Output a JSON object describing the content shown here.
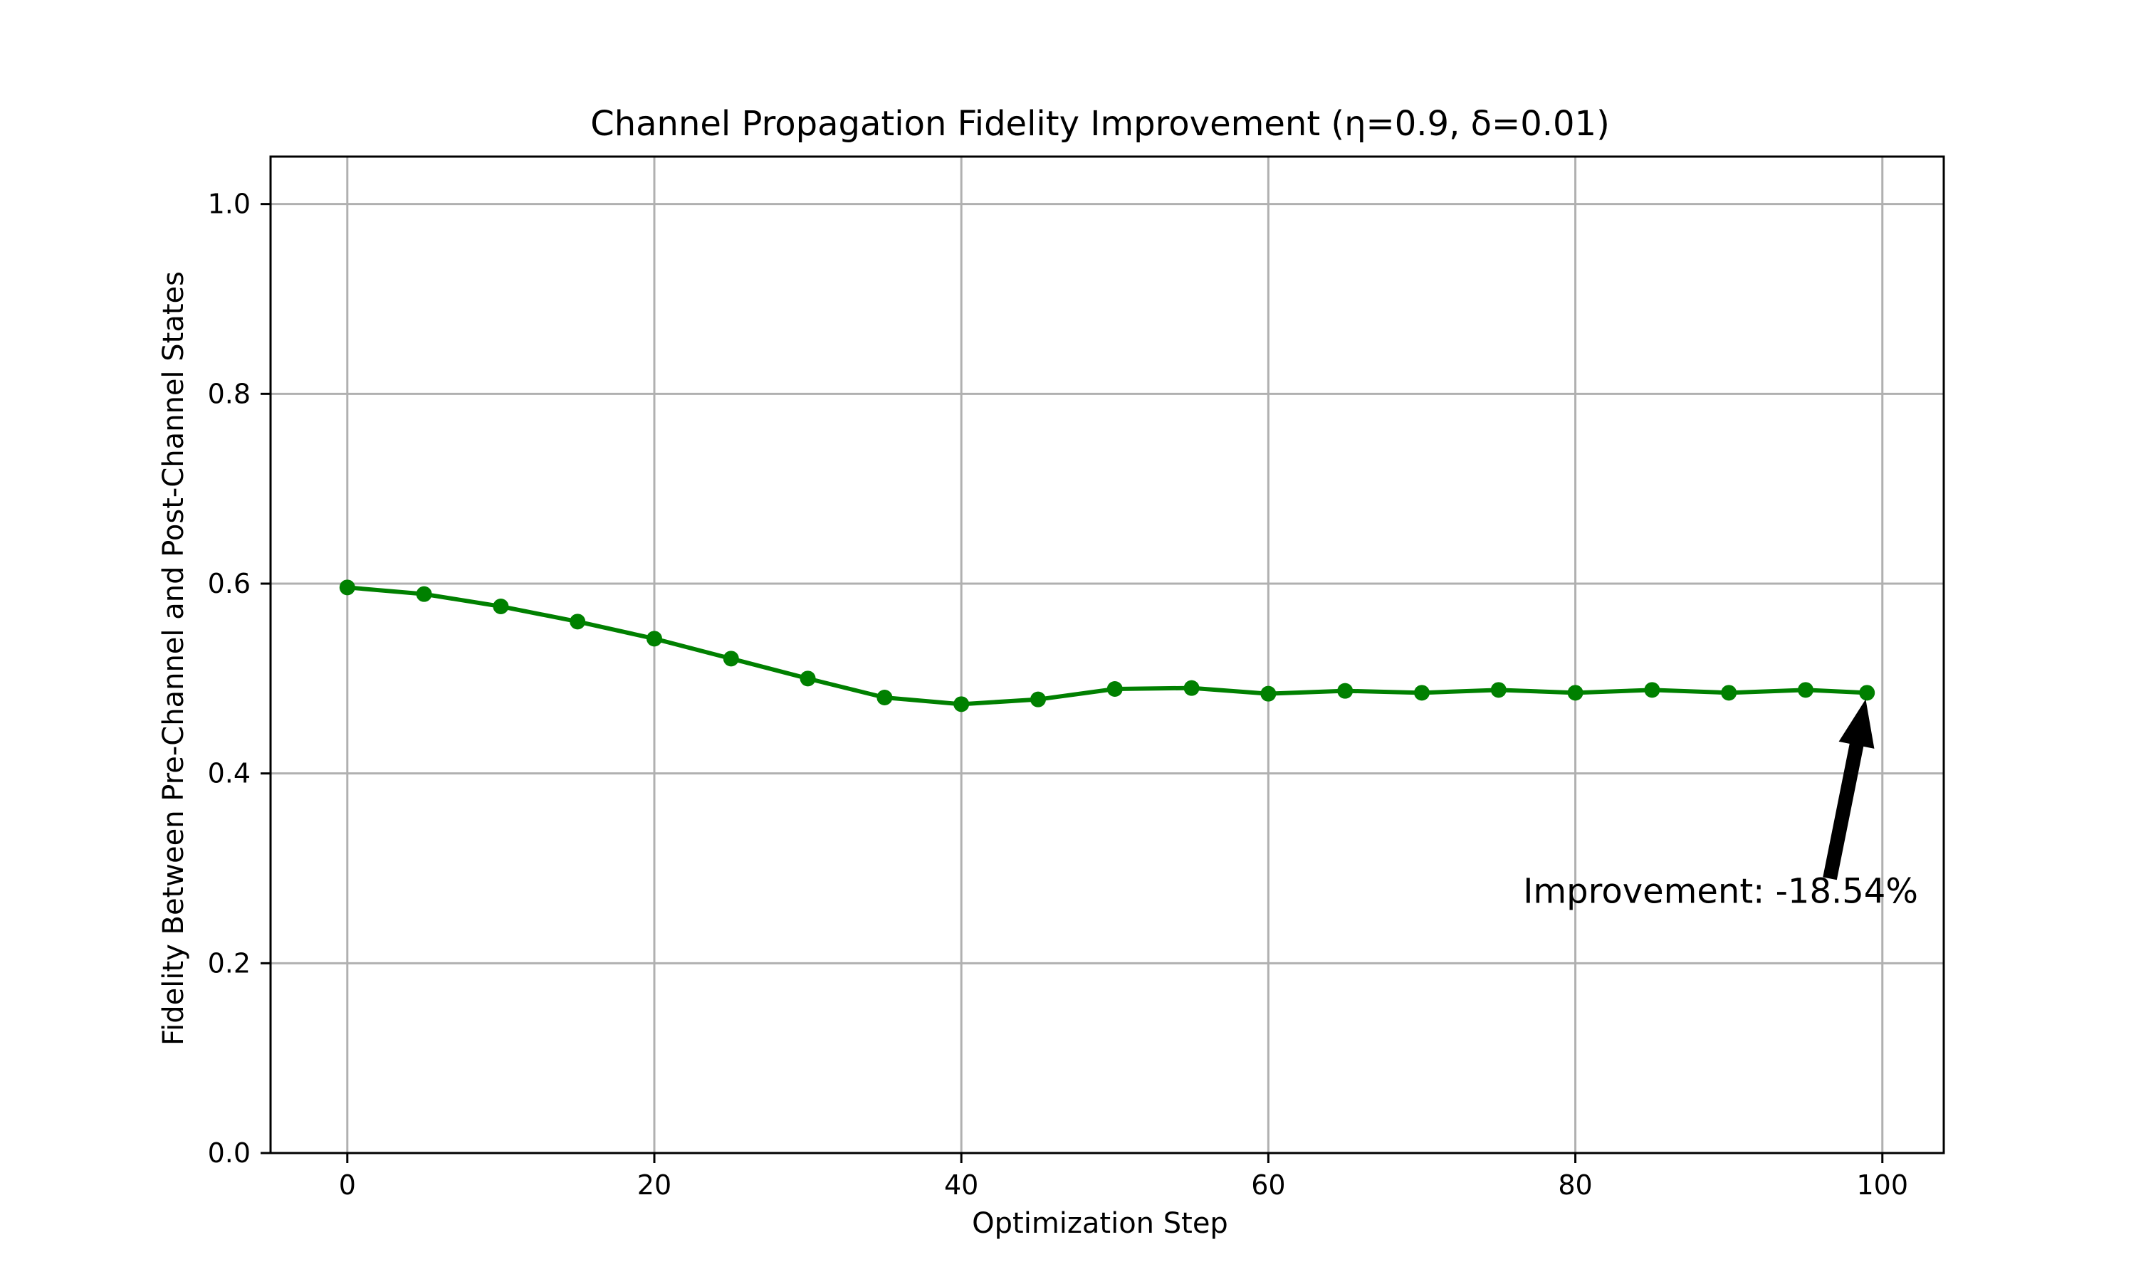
{
  "chart_data": {
    "type": "line",
    "title": "Channel Propagation Fidelity Improvement (η=0.9, δ=0.01)",
    "xlabel": "Optimization Step",
    "ylabel": "Fidelity Between Pre-Channel and Post-Channel States",
    "xlim": [
      -5,
      104
    ],
    "ylim": [
      0.0,
      1.05
    ],
    "xticks": [
      0,
      20,
      40,
      60,
      80,
      100
    ],
    "xtick_labels": [
      "0",
      "20",
      "40",
      "60",
      "80",
      "100"
    ],
    "yticks": [
      0.0,
      0.2,
      0.4,
      0.6,
      0.8,
      1.0
    ],
    "ytick_labels": [
      "0.0",
      "0.2",
      "0.4",
      "0.6",
      "0.8",
      "1.0"
    ],
    "grid": true,
    "series": [
      {
        "color": "#008000",
        "marker": "circle",
        "x": [
          0,
          5,
          10,
          15,
          20,
          25,
          30,
          35,
          40,
          45,
          50,
          55,
          60,
          65,
          70,
          75,
          80,
          85,
          90,
          95,
          99
        ],
        "y": [
          0.596,
          0.589,
          0.576,
          0.56,
          0.542,
          0.521,
          0.5,
          0.48,
          0.473,
          0.478,
          0.489,
          0.49,
          0.484,
          0.487,
          0.485,
          0.488,
          0.485,
          0.488,
          0.485,
          0.488,
          0.485
        ]
      }
    ],
    "annotation": {
      "text": "Improvement: -18.54%",
      "point": [
        99,
        0.485
      ],
      "text_at": [
        89,
        0.25
      ]
    }
  }
}
